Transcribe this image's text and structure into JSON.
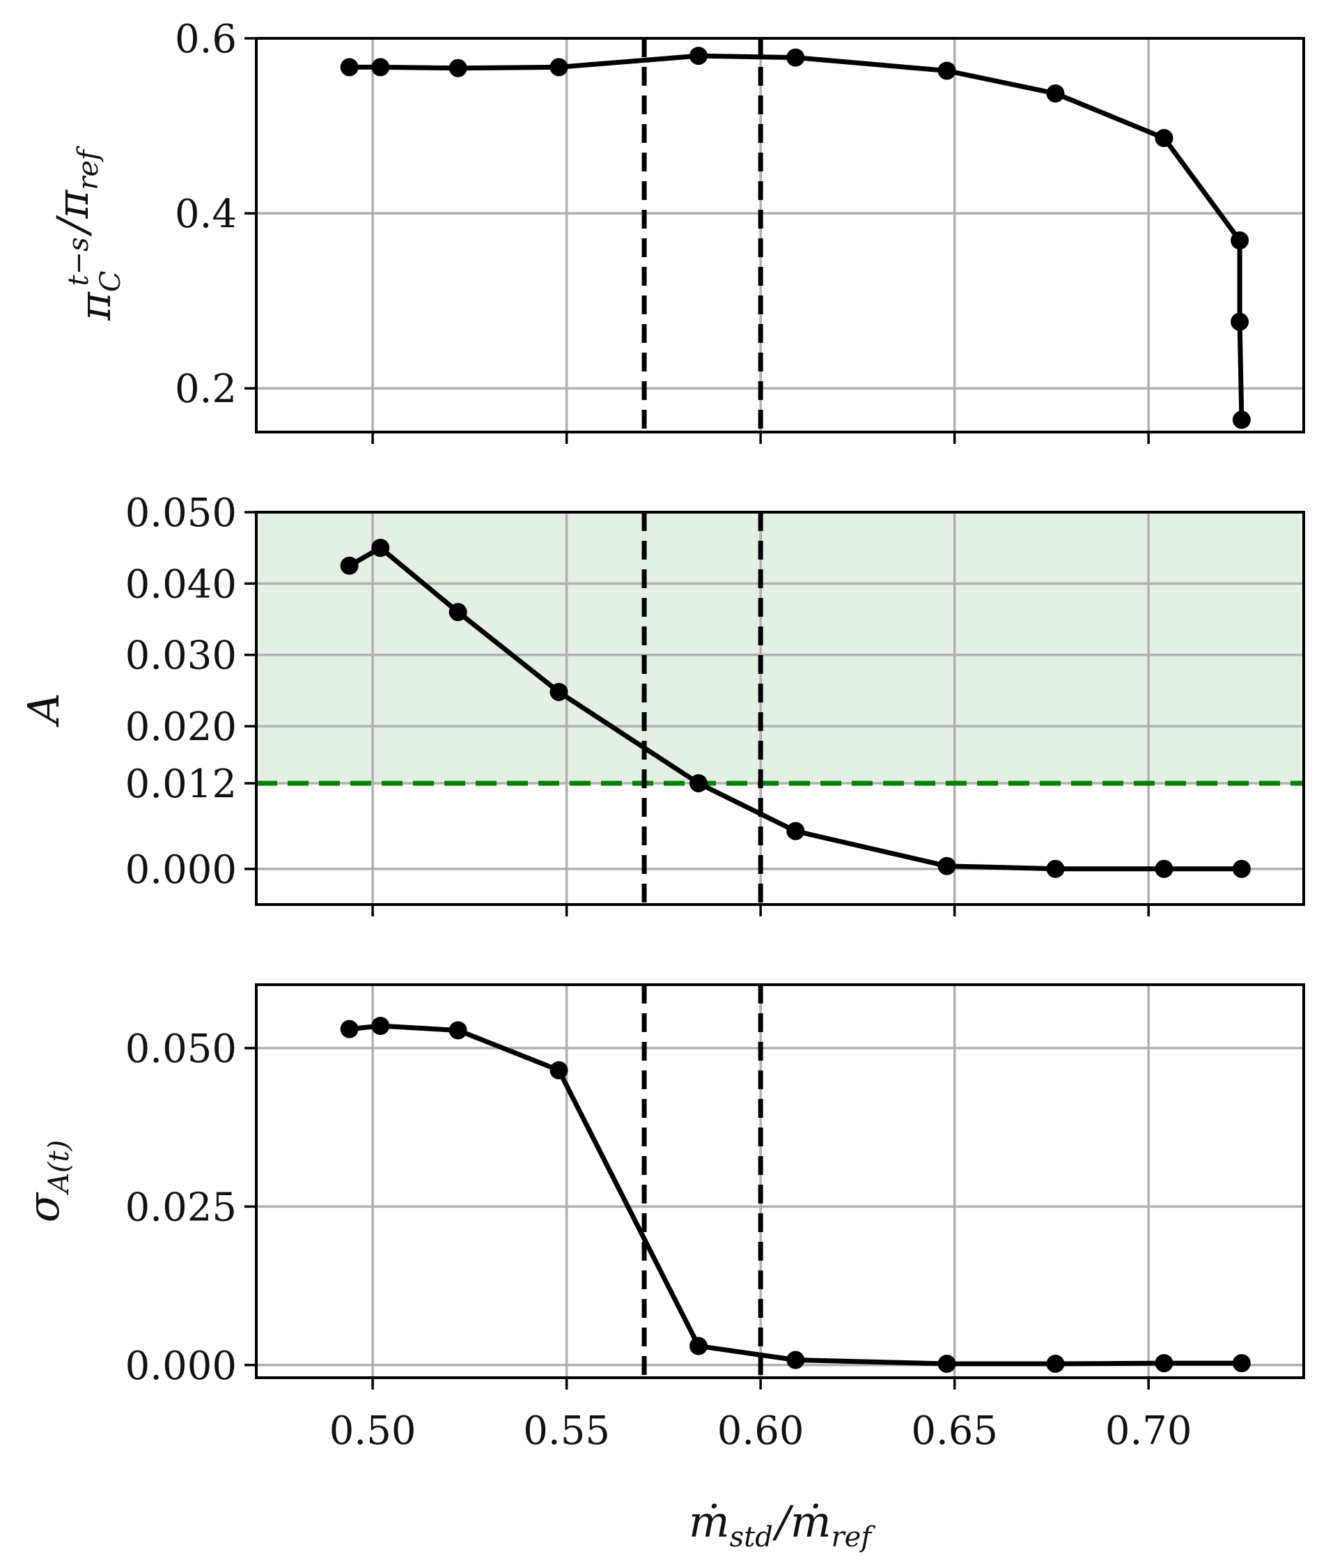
{
  "chart_data": [
    {
      "type": "line",
      "panel": "top",
      "ylabel": {
        "main": "π",
        "sup": "t−s",
        "sub": "C",
        "tail": "/π",
        "tail_sub": "ref"
      },
      "ylim": [
        0.15,
        0.6
      ],
      "yticks": [
        0.2,
        0.4,
        0.6
      ],
      "ytick_labels": [
        "0.2",
        "0.4",
        "0.6"
      ],
      "xlim": [
        0.47,
        0.74
      ],
      "xticks": [
        0.5,
        0.55,
        0.6,
        0.65,
        0.7
      ],
      "grid": true,
      "vlines": [
        0.57,
        0.6
      ],
      "series": [
        {
          "x": [
            0.494,
            0.502,
            0.522,
            0.548,
            0.584,
            0.609,
            0.648,
            0.676,
            0.704,
            0.7235,
            0.7235,
            0.724
          ],
          "y": [
            0.567,
            0.567,
            0.566,
            0.567,
            0.58,
            0.578,
            0.563,
            0.537,
            0.486,
            0.369,
            0.276,
            0.164
          ]
        }
      ]
    },
    {
      "type": "line",
      "panel": "middle",
      "ylabel": {
        "main": "A"
      },
      "ylim": [
        -0.005,
        0.05
      ],
      "yticks": [
        0.0,
        0.012,
        0.02,
        0.03,
        0.04,
        0.05
      ],
      "ytick_labels": [
        "0.000",
        "0.012",
        "0.020",
        "0.030",
        "0.040",
        "0.050"
      ],
      "xlim": [
        0.47,
        0.74
      ],
      "xticks": [
        0.5,
        0.55,
        0.6,
        0.65,
        0.7
      ],
      "grid": true,
      "vlines": [
        0.57,
        0.6
      ],
      "threshold": {
        "y": 0.012,
        "color": "#008000",
        "shade_color": "#e5f0e5"
      },
      "series": [
        {
          "x": [
            0.494,
            0.502,
            0.522,
            0.548,
            0.584,
            0.609,
            0.648,
            0.676,
            0.704,
            0.724
          ],
          "y": [
            0.0425,
            0.045,
            0.036,
            0.0248,
            0.012,
            0.0053,
            0.0004,
            0.0,
            0.0,
            0.0
          ]
        }
      ]
    },
    {
      "type": "line",
      "panel": "bottom",
      "ylabel": {
        "main": "σ",
        "sub": "A(t)"
      },
      "ylim": [
        -0.002,
        0.06
      ],
      "yticks": [
        0.0,
        0.025,
        0.05
      ],
      "ytick_labels": [
        "0.000",
        "0.025",
        "0.050"
      ],
      "xlim": [
        0.47,
        0.74
      ],
      "xticks": [
        0.5,
        0.55,
        0.6,
        0.65,
        0.7
      ],
      "xtick_labels": [
        "0.50",
        "0.55",
        "0.60",
        "0.65",
        "0.70"
      ],
      "xlabel": {
        "main": "ṁ",
        "sub": "std",
        "tail": "/ṁ",
        "tail_sub": "ref"
      },
      "grid": true,
      "vlines": [
        0.57,
        0.6
      ],
      "series": [
        {
          "x": [
            0.494,
            0.502,
            0.522,
            0.548,
            0.584,
            0.609,
            0.648,
            0.676,
            0.704,
            0.724
          ],
          "y": [
            0.053,
            0.0535,
            0.0528,
            0.0465,
            0.003,
            0.0008,
            0.0002,
            0.0002,
            0.0003,
            0.0003
          ]
        }
      ]
    }
  ]
}
